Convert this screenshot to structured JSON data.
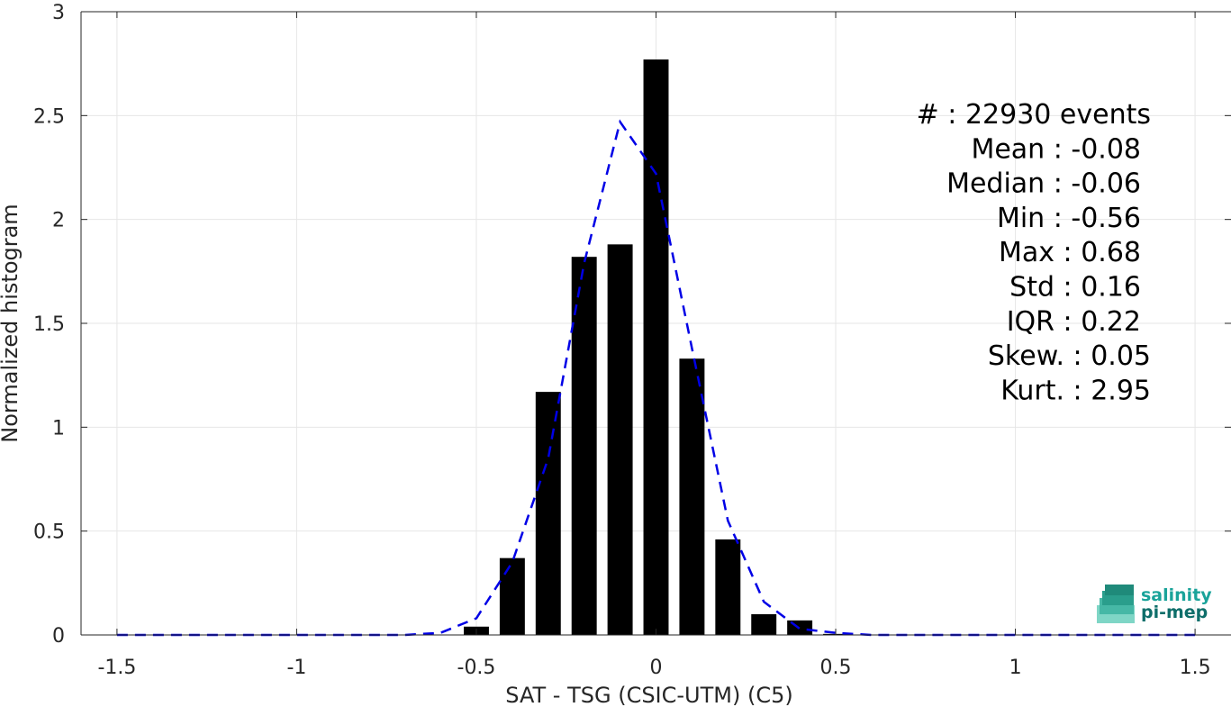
{
  "chart_data": {
    "type": "bar",
    "xlabel": "SAT - TSG (CSIC-UTM) (C5)",
    "ylabel": "Normalized histogram",
    "xlim": [
      -1.6,
      1.6
    ],
    "ylim": [
      0,
      3
    ],
    "xticks": [
      -1.5,
      -1,
      -0.5,
      0,
      0.5,
      1,
      1.5
    ],
    "xtick_labels": [
      "-1.5",
      "-1",
      "-0.5",
      "0",
      "0.5",
      "1",
      "1.5"
    ],
    "yticks": [
      0,
      0.5,
      1,
      1.5,
      2,
      2.5,
      3
    ],
    "ytick_labels": [
      "0",
      "0.5",
      "1",
      "1.5",
      "2",
      "2.5",
      "3"
    ],
    "grid": true,
    "bar_color": "#000000",
    "bar_width": 0.07,
    "bars": {
      "x": [
        -0.5,
        -0.4,
        -0.3,
        -0.2,
        -0.1,
        0.0,
        0.1,
        0.2,
        0.3,
        0.4,
        0.5
      ],
      "values": [
        0.04,
        0.37,
        1.17,
        1.82,
        1.88,
        2.77,
        1.33,
        0.46,
        0.1,
        0.07,
        0.005
      ]
    },
    "fit_curve": {
      "color": "#0000e6",
      "style": "dashed",
      "x": [
        -1.5,
        -1.4,
        -1.3,
        -1.2,
        -1.1,
        -1.0,
        -0.9,
        -0.8,
        -0.7,
        -0.6,
        -0.5,
        -0.4,
        -0.3,
        -0.2,
        -0.1,
        0.0,
        0.1,
        0.2,
        0.3,
        0.4,
        0.5,
        0.6,
        0.7,
        0.8,
        0.9,
        1.0,
        1.1,
        1.2,
        1.3,
        1.4,
        1.5
      ],
      "y": [
        0,
        0,
        0,
        0,
        0,
        0,
        0,
        0,
        0,
        0.01,
        0.08,
        0.35,
        0.85,
        1.79,
        2.47,
        2.22,
        1.38,
        0.55,
        0.16,
        0.03,
        0.01,
        0,
        0,
        0,
        0,
        0,
        0,
        0,
        0,
        0,
        0
      ]
    },
    "stats": [
      "#  : 22930 events",
      "Mean : -0.08",
      "Median : -0.06",
      "Min : -0.56",
      "Max : 0.68",
      "Std : 0.16",
      "IQR : 0.22",
      "Skew. : 0.05",
      "Kurt. : 2.95"
    ]
  },
  "logo": {
    "line1": "salinity",
    "line2": "pi-mep",
    "color1": "#1aa39a",
    "color2": "#0e6e6a"
  }
}
